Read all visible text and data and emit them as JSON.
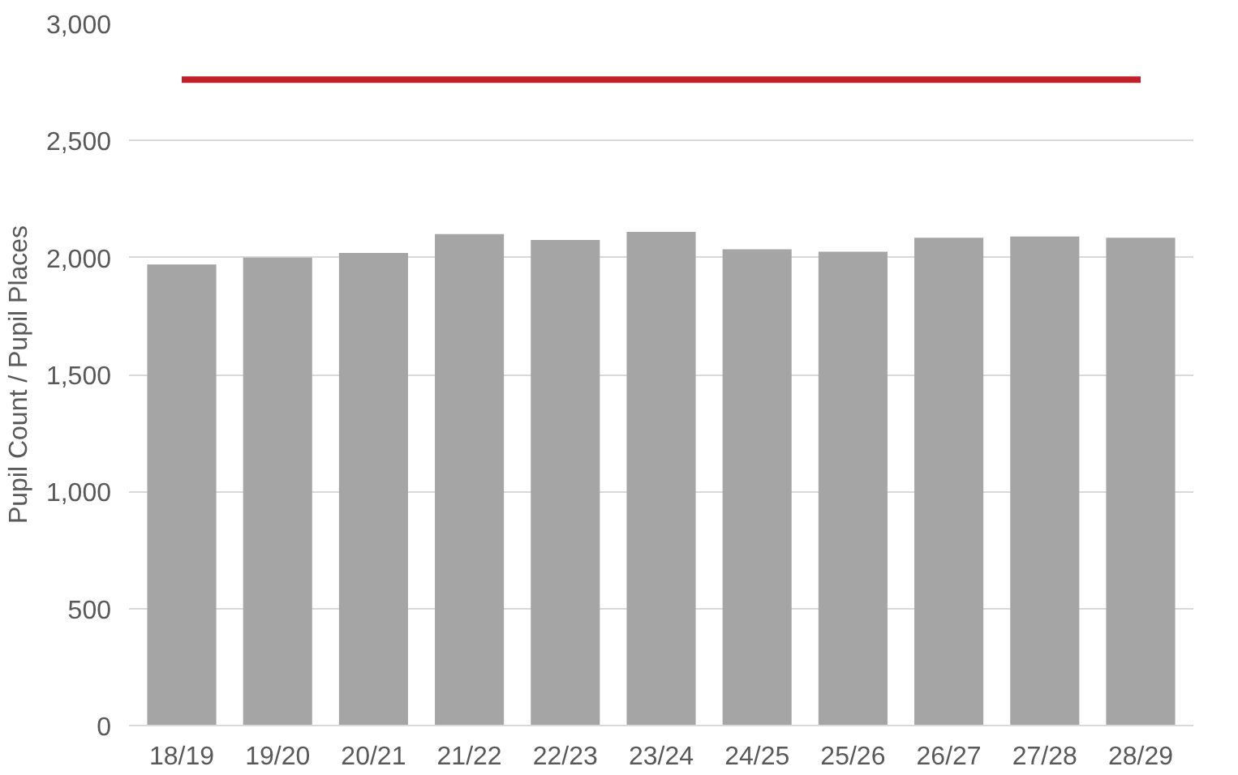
{
  "chart_data": {
    "type": "bar",
    "ylabel": "Pupil Count / Pupil Places",
    "categories": [
      "18/19",
      "19/20",
      "20/21",
      "21/22",
      "22/23",
      "23/24",
      "24/25",
      "25/26",
      "26/27",
      "27/28",
      "28/29"
    ],
    "series": [
      {
        "color": "#a5a5a5",
        "values": [
          1970,
          2000,
          2020,
          2100,
          2075,
          2110,
          2035,
          2025,
          2085,
          2090,
          2085
        ]
      },
      {
        "type": "line",
        "color": "#c0202a",
        "values": [
          2760,
          2760,
          2760,
          2760,
          2760,
          2760,
          2760,
          2760,
          2760,
          2760,
          2760
        ]
      }
    ],
    "ylim": [
      0,
      3000
    ],
    "yticks": [
      {
        "value": 0,
        "label": "0"
      },
      {
        "value": 500,
        "label": "500"
      },
      {
        "value": 1000,
        "label": "1,000"
      },
      {
        "value": 1500,
        "label": "1,500"
      },
      {
        "value": 2000,
        "label": "2,000"
      },
      {
        "value": 2500,
        "label": "2,500"
      },
      {
        "value": 3000,
        "label": "3,000"
      }
    ],
    "grid": "y"
  }
}
